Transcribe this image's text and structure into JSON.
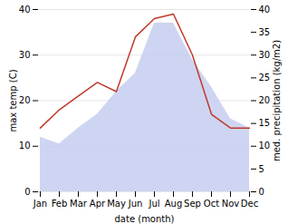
{
  "chart_data": {
    "type": "area",
    "categories": [
      "Jan",
      "Feb",
      "Mar",
      "Apr",
      "May",
      "Jun",
      "Jul",
      "Aug",
      "Sep",
      "Oct",
      "Nov",
      "Dec"
    ],
    "series": [
      {
        "type": "area",
        "color": "#c5cef0",
        "values": [
          12,
          10.5,
          14,
          17,
          22,
          26,
          37,
          37,
          29,
          23,
          16,
          14
        ]
      },
      {
        "type": "line",
        "axis": "y2",
        "color": "#c0392b",
        "values": [
          14,
          18,
          21,
          24,
          22,
          34,
          38,
          39,
          30,
          17,
          14,
          14
        ]
      }
    ],
    "xlabel": "date (month)",
    "ylabel": "max temp (C)",
    "y2label": "med. precipitation (kg/m2)",
    "ylim": [
      0,
      40
    ],
    "yticks": [
      0,
      10,
      20,
      30,
      40
    ],
    "y2lim": [
      0,
      40
    ],
    "y2ticks": [
      0,
      5,
      10,
      15,
      20,
      25,
      30,
      35,
      40
    ],
    "grid": true
  }
}
